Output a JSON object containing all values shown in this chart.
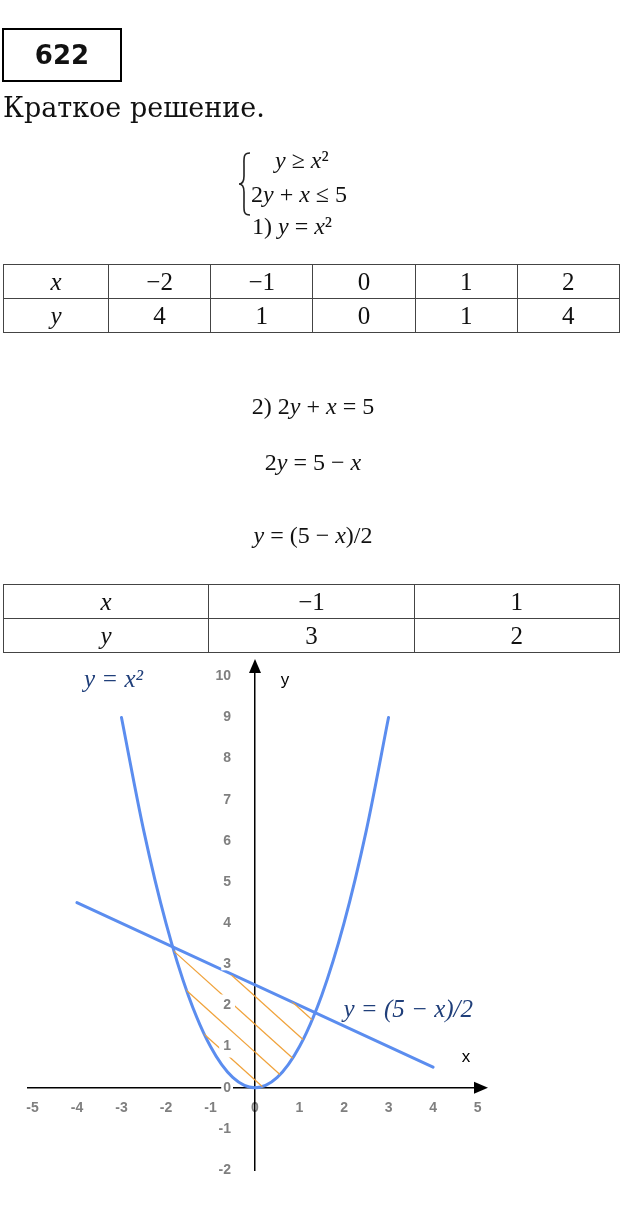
{
  "chart_data": [
    {
      "type": "other",
      "title": "622",
      "subtitle": "Краткое решение.",
      "annotations": [
        "y ≥ x²",
        "2y + x ≤ 5",
        "1) y = x²"
      ]
    },
    {
      "type": "other",
      "xlabel": "x",
      "ylabel": "y",
      "categories": [
        "−2",
        "−1",
        "0",
        "1",
        "2"
      ],
      "values": [
        4,
        1,
        0,
        1,
        4
      ],
      "data_labels": true
    },
    {
      "type": "other",
      "annotations": [
        "2) 2y + x = 5",
        "2y = 5 − x",
        "y = (5 − x)/2"
      ]
    },
    {
      "type": "other",
      "xlabel": "x",
      "ylabel": "y",
      "categories": [
        "−1",
        "1"
      ],
      "values": [
        3,
        2
      ],
      "data_labels": true
    },
    {
      "type": "line",
      "xlabel": "x",
      "ylabel": "y",
      "xlim": [
        -5.1,
        5.1
      ],
      "ylim": [
        -2,
        10.3
      ],
      "xticks": [
        -5,
        -4,
        -3,
        -2,
        -1,
        0,
        1,
        2,
        3,
        4,
        5
      ],
      "yticks": [
        -2,
        -1,
        0,
        1,
        2,
        3,
        4,
        5,
        6,
        7,
        8,
        9,
        10
      ],
      "marker": "none",
      "series": [
        {
          "name": "y = x²",
          "color": "#5b8def",
          "x": [
            -3,
            -2.5,
            -2,
            -1.5,
            -1,
            -0.5,
            0,
            0.5,
            1,
            1.5,
            2,
            2.5,
            3
          ],
          "values": [
            9,
            6.25,
            4,
            2.25,
            1,
            0.25,
            0,
            0.25,
            1,
            2.25,
            4,
            6.25,
            9
          ]
        },
        {
          "name": "y = (5 − x)/2",
          "color": "#5b8def",
          "x": [
            -4,
            4
          ],
          "values": [
            4.5,
            0.5
          ]
        }
      ]
    }
  ]
}
